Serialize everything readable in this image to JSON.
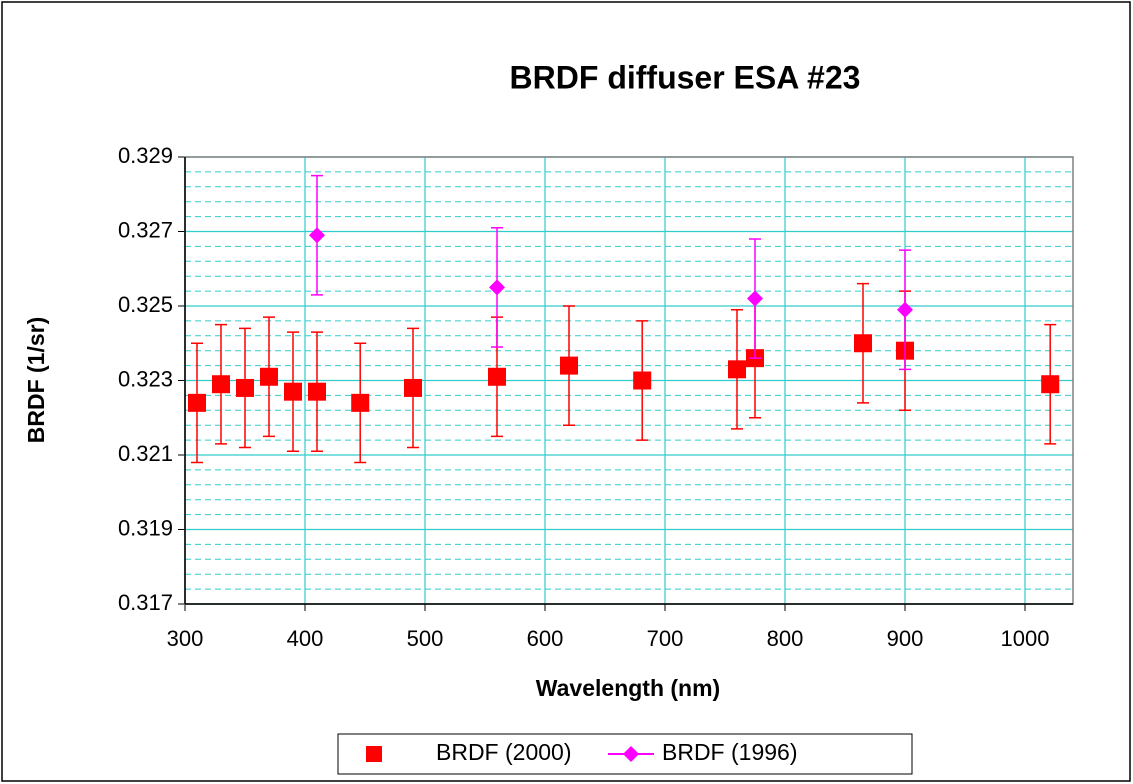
{
  "chart_data": {
    "type": "scatter",
    "title": "BRDF diffuser ESA #23",
    "xlabel": "Wavelength (nm)",
    "ylabel": "BRDF (1/sr)",
    "xlim": [
      300,
      1040
    ],
    "xticks": [
      300,
      400,
      500,
      600,
      700,
      800,
      900,
      1000
    ],
    "ylim": [
      0.317,
      0.329
    ],
    "yticks": [
      0.317,
      0.319,
      0.321,
      0.323,
      0.325,
      0.327,
      0.329
    ],
    "yminorticks": [
      0.3174,
      0.3178,
      0.3182,
      0.3186,
      0.3194,
      0.3198,
      0.3202,
      0.3206,
      0.3214,
      0.3218,
      0.3222,
      0.3226,
      0.3234,
      0.3238,
      0.3242,
      0.3246,
      0.3254,
      0.3258,
      0.3262,
      0.3266,
      0.3274,
      0.3278,
      0.3282,
      0.3286
    ],
    "grid": true,
    "legend": "bottom",
    "series": [
      {
        "name": "BRDF (2000)",
        "color": "#ff0000",
        "marker": "square",
        "x": [
          310,
          330,
          350,
          370,
          390,
          410,
          446,
          490,
          560,
          620,
          681,
          760,
          775,
          865,
          900,
          1021
        ],
        "values": [
          0.3224,
          0.3229,
          0.3228,
          0.3231,
          0.3227,
          0.3227,
          0.3224,
          0.3228,
          0.3231,
          0.3234,
          0.323,
          0.3233,
          0.3236,
          0.324,
          0.3238,
          0.3229
        ],
        "errors": [
          0.0016,
          0.0016,
          0.0016,
          0.0016,
          0.0016,
          0.0016,
          0.0016,
          0.0016,
          0.0016,
          0.0016,
          0.0016,
          0.0016,
          0.0016,
          0.0016,
          0.0016,
          0.0016
        ]
      },
      {
        "name": "BRDF (1996)",
        "color": "#ff00ff",
        "marker": "diamond",
        "x": [
          410,
          560,
          775,
          900
        ],
        "values": [
          0.3269,
          0.3255,
          0.3252,
          0.3249
        ],
        "errors": [
          0.0016,
          0.0016,
          0.0016,
          0.0016
        ]
      }
    ]
  }
}
